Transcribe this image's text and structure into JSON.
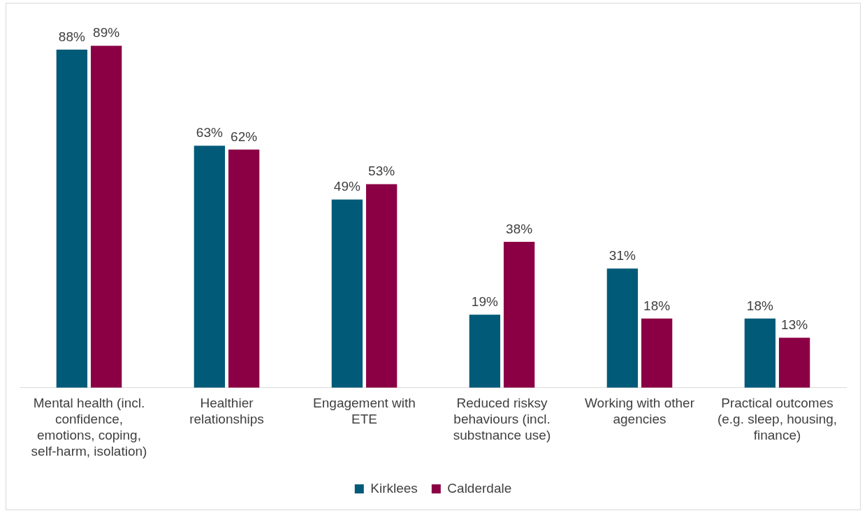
{
  "chart_data": {
    "type": "bar",
    "categories": [
      "Mental health (incl. confidence, emotions, coping, self-harm, isolation)",
      "Healthier relationships",
      "Engagement with ETE",
      "Reduced risksy behaviours (incl. substnance use)",
      "Working with other agencies",
      "Practical outcomes (e.g. sleep, housing, finance)"
    ],
    "series": [
      {
        "name": "Kirklees",
        "color": "#005a78",
        "values": [
          88,
          63,
          49,
          19,
          31,
          18
        ],
        "value_labels": [
          "88%",
          "63%",
          "49%",
          "19%",
          "31%",
          "18%"
        ]
      },
      {
        "name": "Calderdale",
        "color": "#8b0045",
        "values": [
          89,
          62,
          53,
          38,
          18,
          13
        ],
        "value_labels": [
          "89%",
          "62%",
          "53%",
          "38%",
          "18%",
          "13%"
        ]
      }
    ],
    "legend": "bottom",
    "grid": false
  }
}
